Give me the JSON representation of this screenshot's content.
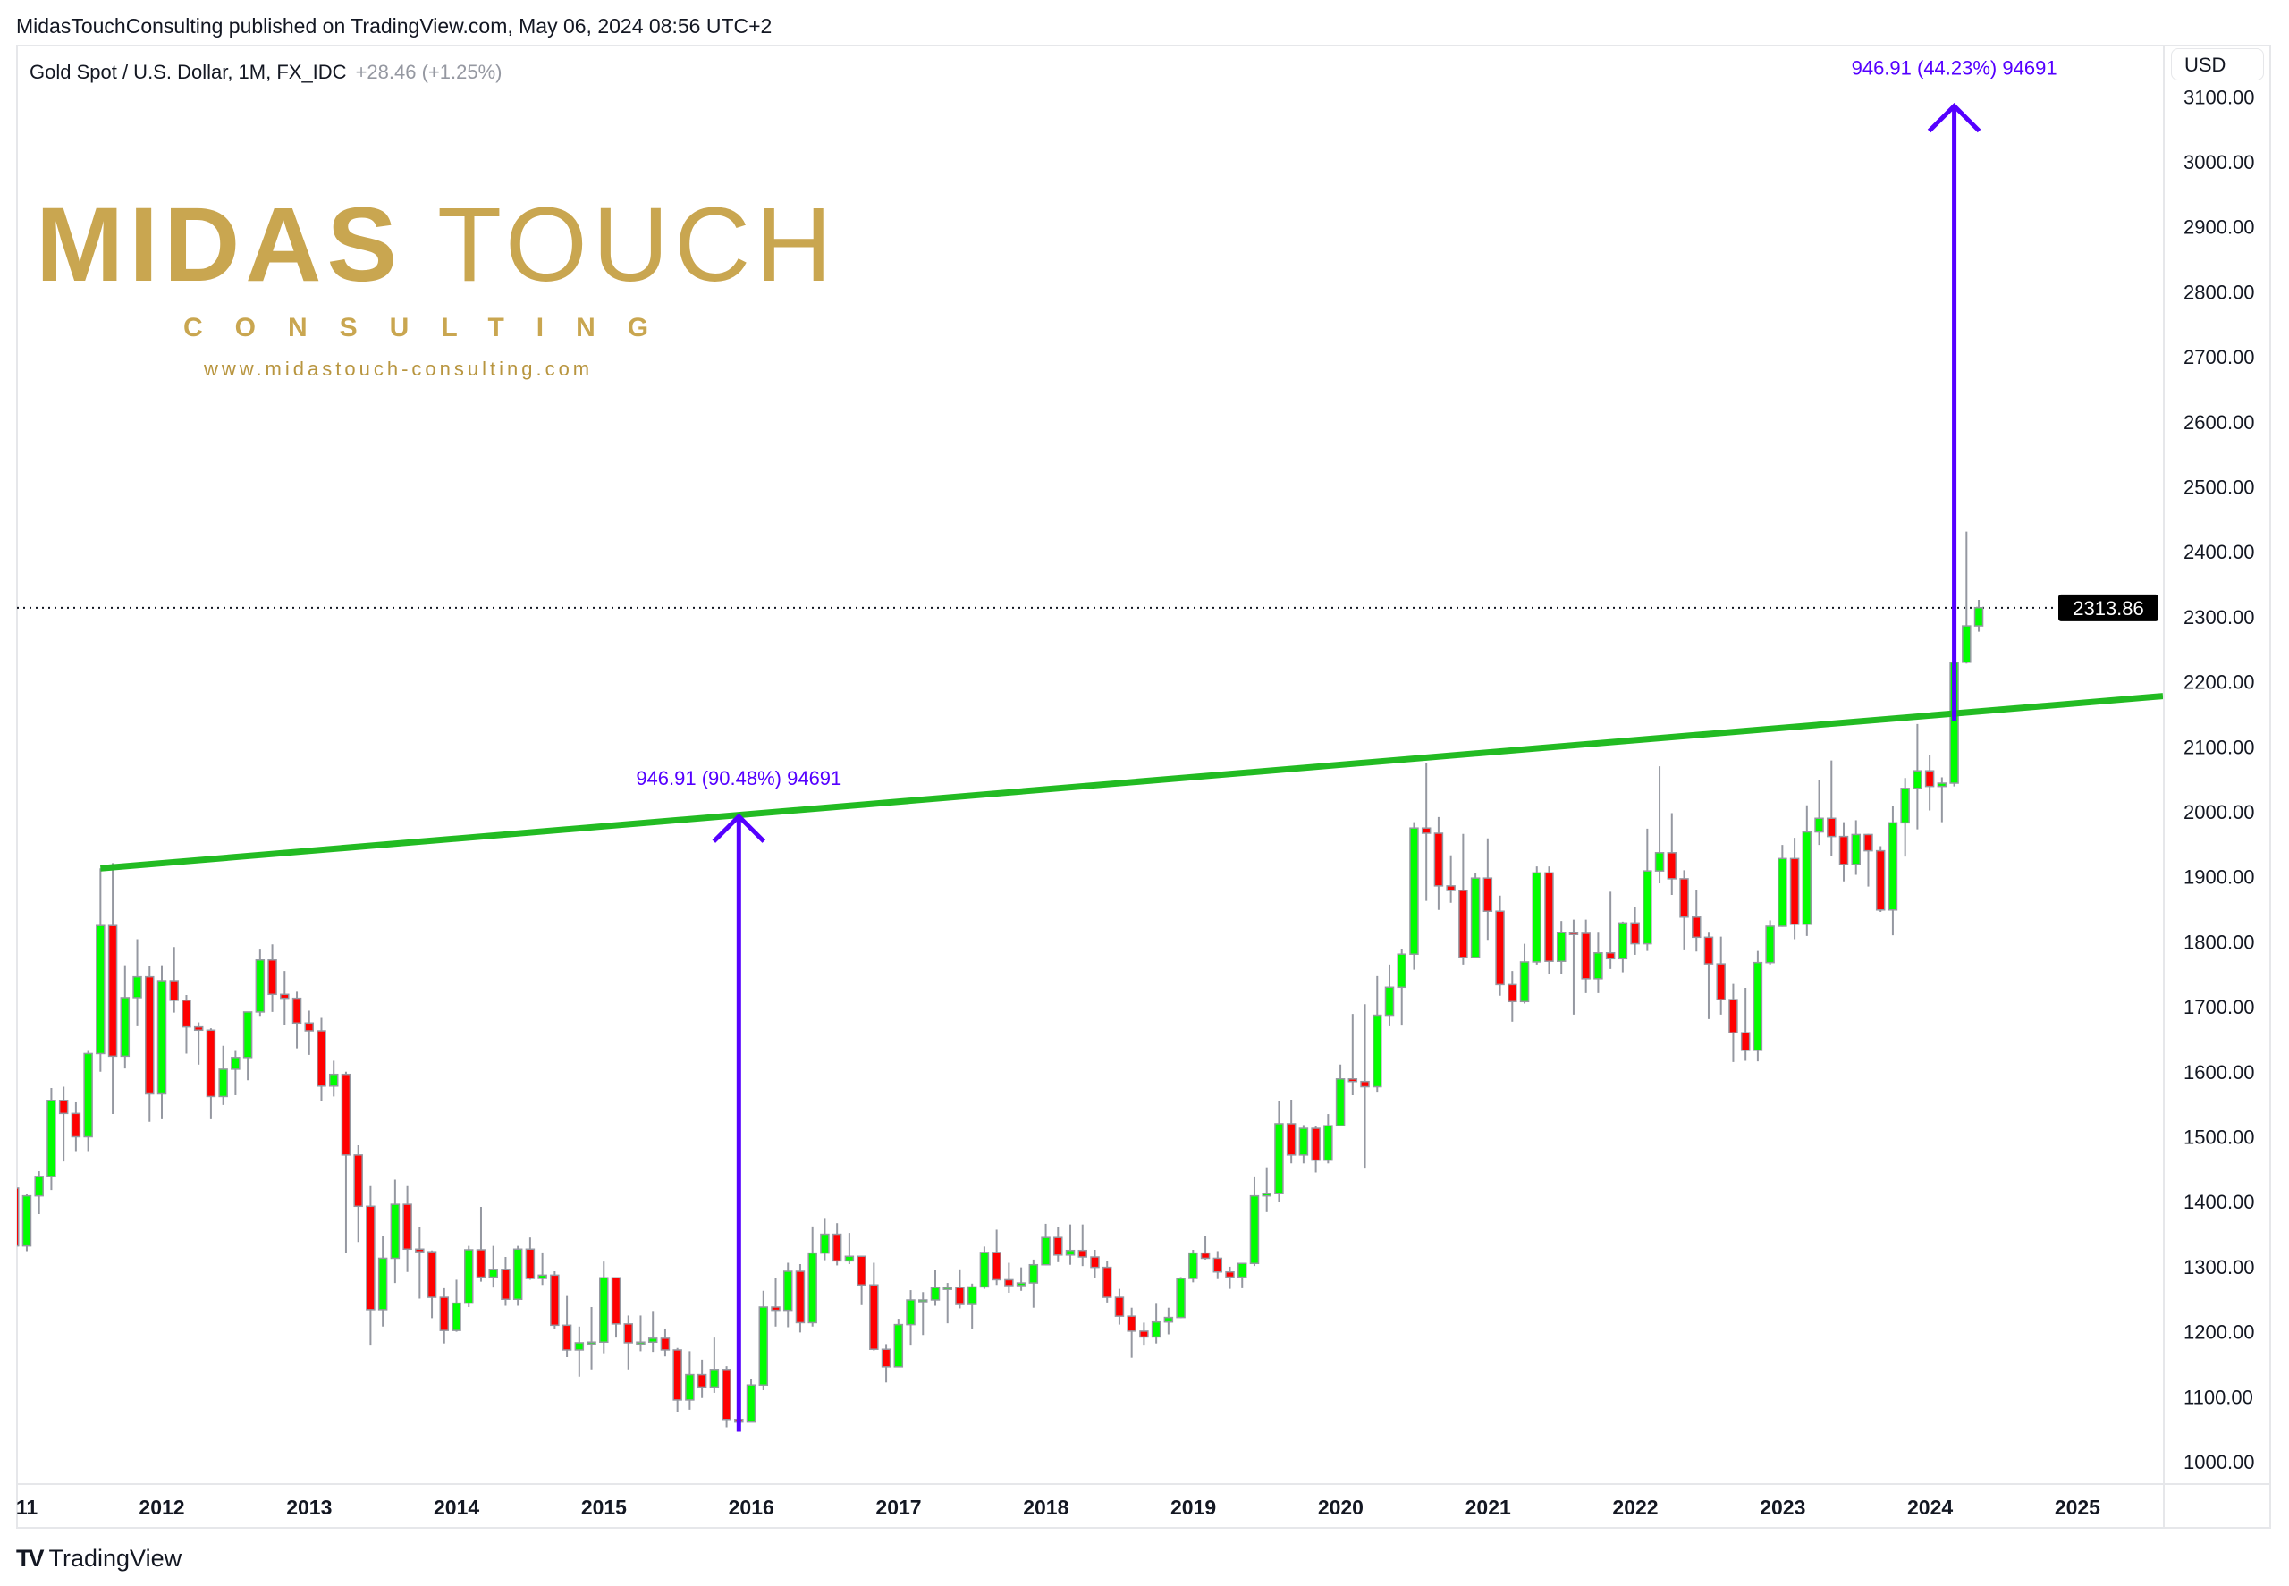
{
  "header": {
    "published": "MidasTouchConsulting published on TradingView.com, May 06, 2024 08:56 UTC+2"
  },
  "legend": {
    "symbol": "Gold Spot / U.S. Dollar, 1M, FX_IDC",
    "change": "+28.46 (+1.25%)"
  },
  "price_axis": {
    "currency": "USD",
    "last_price_label": "2313.86"
  },
  "logo": {
    "word1": "MIDAS",
    "word2": "TOUCH",
    "sub": "CONSULTING",
    "url": "www.midastouch-consulting.com"
  },
  "footer": {
    "brand": "TradingView"
  },
  "chart_data": {
    "type": "candlestick",
    "title": "Gold Spot / U.S. Dollar, 1M, FX_IDC",
    "interval": "1M",
    "first_bar": "2011-01",
    "ohlc_order": [
      "open",
      "high",
      "low",
      "close"
    ],
    "ylim": [
      970,
      3120
    ],
    "y_ticks": [
      1000,
      1100,
      1200,
      1300,
      1400,
      1500,
      1600,
      1700,
      1800,
      1900,
      2000,
      2100,
      2200,
      2300,
      2400,
      2500,
      2600,
      2700,
      2800,
      2900,
      3000,
      3100
    ],
    "x_ticks": [
      "11",
      "2012",
      "2013",
      "2014",
      "2015",
      "2016",
      "2017",
      "2018",
      "2019",
      "2020",
      "2021",
      "2022",
      "2023",
      "2024",
      "2025"
    ],
    "last_price": 2313.86,
    "colors": {
      "up": "#00ff00",
      "down": "#ff0000",
      "wick": "#9598a1",
      "trendline": "#22bb22",
      "measure": "#5500ff"
    },
    "bars": [
      [
        1421,
        1424,
        1308,
        1332
      ],
      [
        1332,
        1412,
        1324,
        1409
      ],
      [
        1409,
        1447,
        1381,
        1439
      ],
      [
        1439,
        1575,
        1418,
        1556
      ],
      [
        1556,
        1577,
        1462,
        1536
      ],
      [
        1536,
        1553,
        1478,
        1500
      ],
      [
        1500,
        1632,
        1478,
        1628
      ],
      [
        1628,
        1913,
        1600,
        1825
      ],
      [
        1825,
        1921,
        1535,
        1624
      ],
      [
        1624,
        1764,
        1605,
        1714
      ],
      [
        1714,
        1804,
        1670,
        1746
      ],
      [
        1746,
        1763,
        1523,
        1566
      ],
      [
        1566,
        1764,
        1527,
        1740
      ],
      [
        1740,
        1792,
        1691,
        1710
      ],
      [
        1710,
        1718,
        1628,
        1669
      ],
      [
        1669,
        1676,
        1611,
        1664
      ],
      [
        1664,
        1667,
        1527,
        1562
      ],
      [
        1562,
        1640,
        1549,
        1604
      ],
      [
        1604,
        1632,
        1564,
        1622
      ],
      [
        1622,
        1692,
        1587,
        1692
      ],
      [
        1692,
        1788,
        1686,
        1772
      ],
      [
        1772,
        1796,
        1692,
        1719
      ],
      [
        1719,
        1755,
        1672,
        1713
      ],
      [
        1713,
        1723,
        1636,
        1675
      ],
      [
        1675,
        1694,
        1626,
        1663
      ],
      [
        1663,
        1683,
        1555,
        1578
      ],
      [
        1578,
        1617,
        1562,
        1596
      ],
      [
        1596,
        1600,
        1321,
        1472
      ],
      [
        1472,
        1487,
        1338,
        1393
      ],
      [
        1393,
        1424,
        1180,
        1234
      ],
      [
        1234,
        1347,
        1208,
        1313
      ],
      [
        1313,
        1434,
        1275,
        1396
      ],
      [
        1396,
        1424,
        1292,
        1327
      ],
      [
        1327,
        1361,
        1251,
        1323
      ],
      [
        1323,
        1325,
        1221,
        1253
      ],
      [
        1253,
        1267,
        1182,
        1202
      ],
      [
        1202,
        1280,
        1200,
        1244
      ],
      [
        1244,
        1332,
        1238,
        1326
      ],
      [
        1326,
        1392,
        1277,
        1284
      ],
      [
        1284,
        1332,
        1268,
        1296
      ],
      [
        1296,
        1315,
        1240,
        1250
      ],
      [
        1250,
        1332,
        1240,
        1327
      ],
      [
        1327,
        1345,
        1280,
        1282
      ],
      [
        1282,
        1322,
        1272,
        1287
      ],
      [
        1287,
        1293,
        1205,
        1210
      ],
      [
        1210,
        1255,
        1161,
        1172
      ],
      [
        1172,
        1208,
        1131,
        1183
      ],
      [
        1183,
        1238,
        1142,
        1184
      ],
      [
        1184,
        1308,
        1167,
        1283
      ],
      [
        1283,
        1284,
        1191,
        1212
      ],
      [
        1212,
        1225,
        1142,
        1183
      ],
      [
        1183,
        1225,
        1170,
        1184
      ],
      [
        1184,
        1232,
        1169,
        1190
      ],
      [
        1190,
        1205,
        1162,
        1172
      ],
      [
        1172,
        1175,
        1077,
        1095
      ],
      [
        1095,
        1170,
        1080,
        1134
      ],
      [
        1134,
        1157,
        1098,
        1115
      ],
      [
        1115,
        1191,
        1106,
        1142
      ],
      [
        1142,
        1147,
        1053,
        1065
      ],
      [
        1065,
        1088,
        1046,
        1061
      ],
      [
        1061,
        1127,
        1061,
        1118
      ],
      [
        1118,
        1263,
        1110,
        1238
      ],
      [
        1238,
        1283,
        1208,
        1233
      ],
      [
        1233,
        1306,
        1207,
        1293
      ],
      [
        1293,
        1304,
        1199,
        1214
      ],
      [
        1214,
        1362,
        1208,
        1321
      ],
      [
        1321,
        1375,
        1310,
        1350
      ],
      [
        1350,
        1367,
        1302,
        1309
      ],
      [
        1309,
        1352,
        1304,
        1316
      ],
      [
        1316,
        1317,
        1241,
        1272
      ],
      [
        1272,
        1306,
        1171,
        1173
      ],
      [
        1173,
        1181,
        1122,
        1146
      ],
      [
        1146,
        1220,
        1146,
        1211
      ],
      [
        1211,
        1264,
        1180,
        1249
      ],
      [
        1249,
        1261,
        1195,
        1249
      ],
      [
        1249,
        1295,
        1240,
        1268
      ],
      [
        1268,
        1275,
        1213,
        1268
      ],
      [
        1268,
        1296,
        1236,
        1242
      ],
      [
        1242,
        1274,
        1205,
        1269
      ],
      [
        1269,
        1331,
        1266,
        1322
      ],
      [
        1322,
        1357,
        1272,
        1280
      ],
      [
        1280,
        1306,
        1260,
        1271
      ],
      [
        1271,
        1299,
        1263,
        1275
      ],
      [
        1275,
        1311,
        1237,
        1303
      ],
      [
        1303,
        1366,
        1302,
        1345
      ],
      [
        1345,
        1361,
        1307,
        1318
      ],
      [
        1318,
        1365,
        1303,
        1325
      ],
      [
        1325,
        1365,
        1301,
        1315
      ],
      [
        1315,
        1326,
        1282,
        1299
      ],
      [
        1299,
        1309,
        1245,
        1253
      ],
      [
        1253,
        1266,
        1211,
        1224
      ],
      [
        1224,
        1237,
        1160,
        1201
      ],
      [
        1201,
        1214,
        1180,
        1192
      ],
      [
        1192,
        1243,
        1182,
        1215
      ],
      [
        1215,
        1237,
        1196,
        1222
      ],
      [
        1222,
        1284,
        1221,
        1282
      ],
      [
        1282,
        1326,
        1276,
        1321
      ],
      [
        1321,
        1347,
        1311,
        1313
      ],
      [
        1313,
        1324,
        1281,
        1292
      ],
      [
        1292,
        1300,
        1266,
        1284
      ],
      [
        1284,
        1306,
        1267,
        1305
      ],
      [
        1305,
        1439,
        1301,
        1409
      ],
      [
        1409,
        1453,
        1384,
        1413
      ],
      [
        1413,
        1555,
        1400,
        1520
      ],
      [
        1520,
        1557,
        1459,
        1472
      ],
      [
        1472,
        1518,
        1459,
        1513
      ],
      [
        1513,
        1516,
        1445,
        1464
      ],
      [
        1464,
        1535,
        1459,
        1517
      ],
      [
        1517,
        1611,
        1517,
        1589
      ],
      [
        1589,
        1689,
        1564,
        1585
      ],
      [
        1585,
        1704,
        1451,
        1577
      ],
      [
        1577,
        1747,
        1568,
        1687
      ],
      [
        1687,
        1765,
        1670,
        1730
      ],
      [
        1730,
        1789,
        1671,
        1781
      ],
      [
        1781,
        1984,
        1757,
        1975
      ],
      [
        1975,
        2075,
        1863,
        1967
      ],
      [
        1967,
        1992,
        1849,
        1886
      ],
      [
        1886,
        1933,
        1860,
        1879
      ],
      [
        1879,
        1966,
        1765,
        1776
      ],
      [
        1776,
        1906,
        1775,
        1898
      ],
      [
        1898,
        1959,
        1803,
        1847
      ],
      [
        1847,
        1871,
        1717,
        1734
      ],
      [
        1734,
        1755,
        1677,
        1708
      ],
      [
        1708,
        1797,
        1705,
        1769
      ],
      [
        1769,
        1916,
        1765,
        1906
      ],
      [
        1906,
        1916,
        1750,
        1770
      ],
      [
        1770,
        1832,
        1751,
        1814
      ],
      [
        1814,
        1834,
        1688,
        1813
      ],
      [
        1813,
        1834,
        1721,
        1743
      ],
      [
        1743,
        1814,
        1721,
        1783
      ],
      [
        1783,
        1877,
        1758,
        1774
      ],
      [
        1774,
        1831,
        1753,
        1829
      ],
      [
        1829,
        1853,
        1780,
        1797
      ],
      [
        1797,
        1974,
        1786,
        1909
      ],
      [
        1909,
        2070,
        1890,
        1937
      ],
      [
        1937,
        1998,
        1872,
        1897
      ],
      [
        1897,
        1910,
        1787,
        1838
      ],
      [
        1838,
        1879,
        1785,
        1807
      ],
      [
        1807,
        1814,
        1681,
        1766
      ],
      [
        1766,
        1808,
        1688,
        1711
      ],
      [
        1711,
        1735,
        1615,
        1660
      ],
      [
        1660,
        1729,
        1617,
        1633
      ],
      [
        1633,
        1786,
        1616,
        1768
      ],
      [
        1768,
        1833,
        1765,
        1824
      ],
      [
        1824,
        1949,
        1823,
        1928
      ],
      [
        1928,
        1960,
        1804,
        1827
      ],
      [
        1827,
        2010,
        1809,
        1969
      ],
      [
        1969,
        2049,
        1949,
        1990
      ],
      [
        1990,
        2079,
        1932,
        1962
      ],
      [
        1962,
        1984,
        1893,
        1919
      ],
      [
        1919,
        1987,
        1903,
        1965
      ],
      [
        1965,
        1966,
        1885,
        1940
      ],
      [
        1940,
        1947,
        1846,
        1849
      ],
      [
        1849,
        2009,
        1810,
        1983
      ],
      [
        1983,
        2052,
        1931,
        2036
      ],
      [
        2036,
        2135,
        1973,
        2063
      ],
      [
        2063,
        2088,
        2002,
        2039
      ],
      [
        2039,
        2053,
        1984,
        2044
      ],
      [
        2044,
        2236,
        2039,
        2230
      ],
      [
        2230,
        2431,
        2228,
        2286
      ],
      [
        2286,
        2326,
        2277,
        2314
      ]
    ],
    "trendline": {
      "start": {
        "date": "2011-08",
        "price": 1913
      },
      "end": {
        "date": "2025-08",
        "price": 2178
      }
    },
    "measures": [
      {
        "date": "2015-12",
        "from": 1046,
        "to": 1992.91,
        "label": "946.91 (90.48%) 94691"
      },
      {
        "date": "2024-03",
        "from": 2139,
        "to": 3085.91,
        "label": "946.91 (44.23%) 94691"
      }
    ]
  }
}
